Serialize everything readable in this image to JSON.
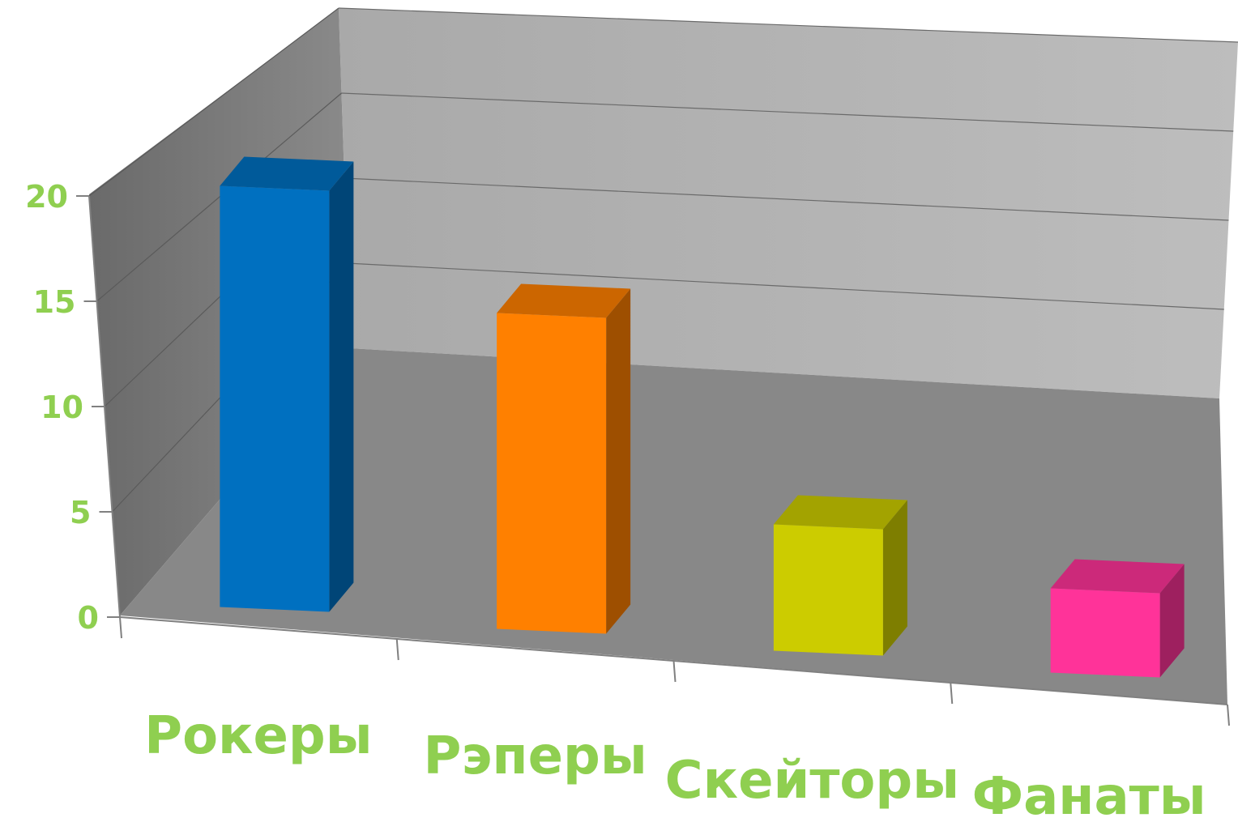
{
  "chart_data": {
    "type": "bar",
    "style": "3d-column",
    "categories": [
      "Рокеры",
      "Рэперы",
      "Скейторы",
      "Фанаты"
    ],
    "values": [
      20,
      15,
      6,
      4
    ],
    "colors": [
      "#0070c0",
      "#ff8000",
      "#cccc00",
      "#ff3399"
    ],
    "ylim": [
      0,
      20
    ],
    "yticks": [
      "0",
      "5",
      "10",
      "15",
      "20"
    ],
    "grid": true,
    "legend": "none",
    "title": "",
    "xlabel": "",
    "ylabel": ""
  }
}
